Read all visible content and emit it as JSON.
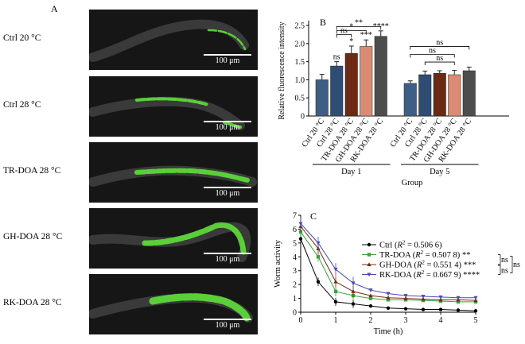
{
  "panel_a": {
    "letter": "A",
    "rows": [
      {
        "label": "Ctrl 20 °C",
        "scale": "100 μm"
      },
      {
        "label": "Ctrl 28 °C",
        "scale": "100 μm"
      },
      {
        "label": "TR-DOA 28 °C",
        "scale": "100 μm"
      },
      {
        "label": "GH-DOA 28 °C",
        "scale": "100 μm"
      },
      {
        "label": "RK-DOA 28 °C",
        "scale": "100 μm"
      }
    ]
  },
  "colors": {
    "ctrl20": "#3f5e85",
    "ctrl28": "#2f4c73",
    "tr": "#6a2a14",
    "gh": "#d98b74",
    "rk": "#4d4d4d",
    "fluor": "#5fe03a"
  },
  "chart_data": [
    {
      "panel": "B",
      "type": "bar",
      "ylabel": "Relative fluorescence intensity",
      "xlabel": "Group",
      "ylim": [
        0,
        2.5
      ],
      "yticks": [
        "0",
        "0.5",
        "1.0",
        "1.5",
        "2.0",
        "2.5"
      ],
      "categories": [
        "Ctrl 20 °C",
        "Ctrl 28 °C",
        "TR-DOA 28 °C",
        "GH-DOA 28 °C",
        "RK-DOA 28 °C"
      ],
      "groups": [
        {
          "name": "Day 1",
          "values": [
            1.0,
            1.38,
            1.73,
            1.92,
            2.2
          ],
          "errors": [
            0.15,
            0.12,
            0.2,
            0.18,
            0.15
          ],
          "marks": [
            "",
            "ns",
            "*",
            "***",
            "****"
          ]
        },
        {
          "name": "Day 5",
          "values": [
            0.9,
            1.14,
            1.18,
            1.14,
            1.25
          ],
          "errors": [
            0.07,
            0.1,
            0.07,
            0.12,
            0.1
          ],
          "marks": [
            "",
            "",
            "",
            "",
            ""
          ]
        }
      ],
      "brackets": [
        {
          "label": "**"
        },
        {
          "label": "*"
        },
        {
          "label": "ns"
        },
        {
          "label": "ns"
        },
        {
          "label": "ns"
        },
        {
          "label": "ns"
        }
      ]
    },
    {
      "panel": "C",
      "type": "line",
      "ylabel": "Worm activity",
      "xlabel": "Time (h)",
      "xlim": [
        0,
        5
      ],
      "ylim": [
        0,
        7
      ],
      "x": [
        0,
        0.5,
        1,
        1.5,
        2,
        2.5,
        3,
        3.5,
        4,
        4.5,
        5
      ],
      "xticks": [
        "0",
        "1",
        "2",
        "3",
        "4",
        "5"
      ],
      "yticks": [
        "0",
        "1",
        "2",
        "3",
        "4",
        "5",
        "6",
        "7"
      ],
      "series": [
        {
          "name": "Ctrl",
          "r2": "= 0.506 6)",
          "sig": "",
          "values": [
            5.3,
            2.2,
            0.75,
            0.6,
            0.45,
            0.3,
            0.25,
            0.2,
            0.2,
            0.15,
            0.1
          ]
        },
        {
          "name": "TR-DOA",
          "r2": "= 0.507 8)",
          "sig": "**",
          "values": [
            5.8,
            4.0,
            1.5,
            1.2,
            1.0,
            0.9,
            0.9,
            0.85,
            0.8,
            0.75,
            0.75
          ]
        },
        {
          "name": "GH-DOA",
          "r2": "= 0.551 4)",
          "sig": "***",
          "values": [
            6.2,
            4.6,
            2.2,
            1.5,
            1.2,
            1.05,
            1.0,
            0.95,
            0.9,
            0.9,
            0.85
          ]
        },
        {
          "name": "RK-DOA",
          "r2": "= 0.667 9)",
          "sig": "****",
          "values": [
            6.4,
            5.0,
            3.1,
            2.1,
            1.6,
            1.35,
            1.2,
            1.15,
            1.1,
            1.05,
            1.05
          ]
        }
      ],
      "legend_bracket_labels": [
        "ns",
        "ns",
        "ns"
      ]
    }
  ]
}
